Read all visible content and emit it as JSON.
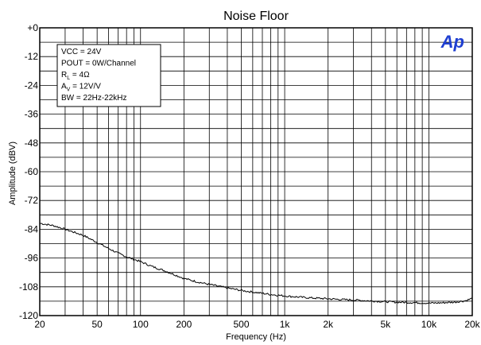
{
  "chart_data": {
    "type": "line",
    "title": "Noise Floor",
    "xlabel": "Frequency (Hz)",
    "ylabel": "Amplitude (dBV)",
    "x_scale": "log",
    "xlim": [
      20,
      20000
    ],
    "ylim": [
      -120,
      0
    ],
    "grid": true,
    "x_ticks": [
      {
        "value": 20,
        "label": "20"
      },
      {
        "value": 50,
        "label": "50"
      },
      {
        "value": 100,
        "label": "100"
      },
      {
        "value": 200,
        "label": "200"
      },
      {
        "value": 500,
        "label": "500"
      },
      {
        "value": 1000,
        "label": "1k"
      },
      {
        "value": 2000,
        "label": "2k"
      },
      {
        "value": 5000,
        "label": "5k"
      },
      {
        "value": 10000,
        "label": "10k"
      },
      {
        "value": 20000,
        "label": "20k"
      }
    ],
    "y_ticks": [
      {
        "value": 0,
        "label": "+0"
      },
      {
        "value": -12,
        "label": "-12"
      },
      {
        "value": -24,
        "label": "-24"
      },
      {
        "value": -36,
        "label": "-36"
      },
      {
        "value": -48,
        "label": "-48"
      },
      {
        "value": -60,
        "label": "-60"
      },
      {
        "value": -72,
        "label": "-72"
      },
      {
        "value": -84,
        "label": "-84"
      },
      {
        "value": -96,
        "label": "-96"
      },
      {
        "value": -108,
        "label": "-108"
      },
      {
        "value": -120,
        "label": "-120"
      }
    ],
    "annotations": [
      {
        "key": "vcc",
        "text": "VCC = 24V"
      },
      {
        "key": "pout",
        "text": "POUT = 0W/Channel"
      },
      {
        "key": "rl",
        "main": "R",
        "sub": "L",
        "rest": " = 4Ω"
      },
      {
        "key": "av",
        "main": "A",
        "sub": "V",
        "rest": " = 12V/V"
      },
      {
        "key": "bw",
        "text": "BW = 22Hz-22kHz"
      }
    ],
    "logo": "Ap",
    "series": [
      {
        "color": "#000000",
        "x": [
          20,
          25,
          30,
          40,
          50,
          60,
          70,
          80,
          100,
          120,
          150,
          200,
          250,
          300,
          400,
          500,
          600,
          700,
          800,
          1000,
          1200,
          1500,
          2000,
          2500,
          3000,
          4000,
          5000,
          6000,
          7000,
          8000,
          10000,
          12000,
          15000,
          18000,
          20000
        ],
        "y": [
          -81.5,
          -82.5,
          -84,
          -86.5,
          -89.5,
          -92,
          -94,
          -95.5,
          -97.5,
          -99.5,
          -101.5,
          -104.5,
          -106,
          -107,
          -108.5,
          -109.5,
          -110.2,
          -110.7,
          -111.2,
          -111.8,
          -112.2,
          -112.6,
          -113.0,
          -113.3,
          -113.5,
          -113.9,
          -114.2,
          -114.4,
          -114.5,
          -114.6,
          -114.8,
          -114.7,
          -114.4,
          -113.8,
          -112.8
        ]
      }
    ]
  }
}
